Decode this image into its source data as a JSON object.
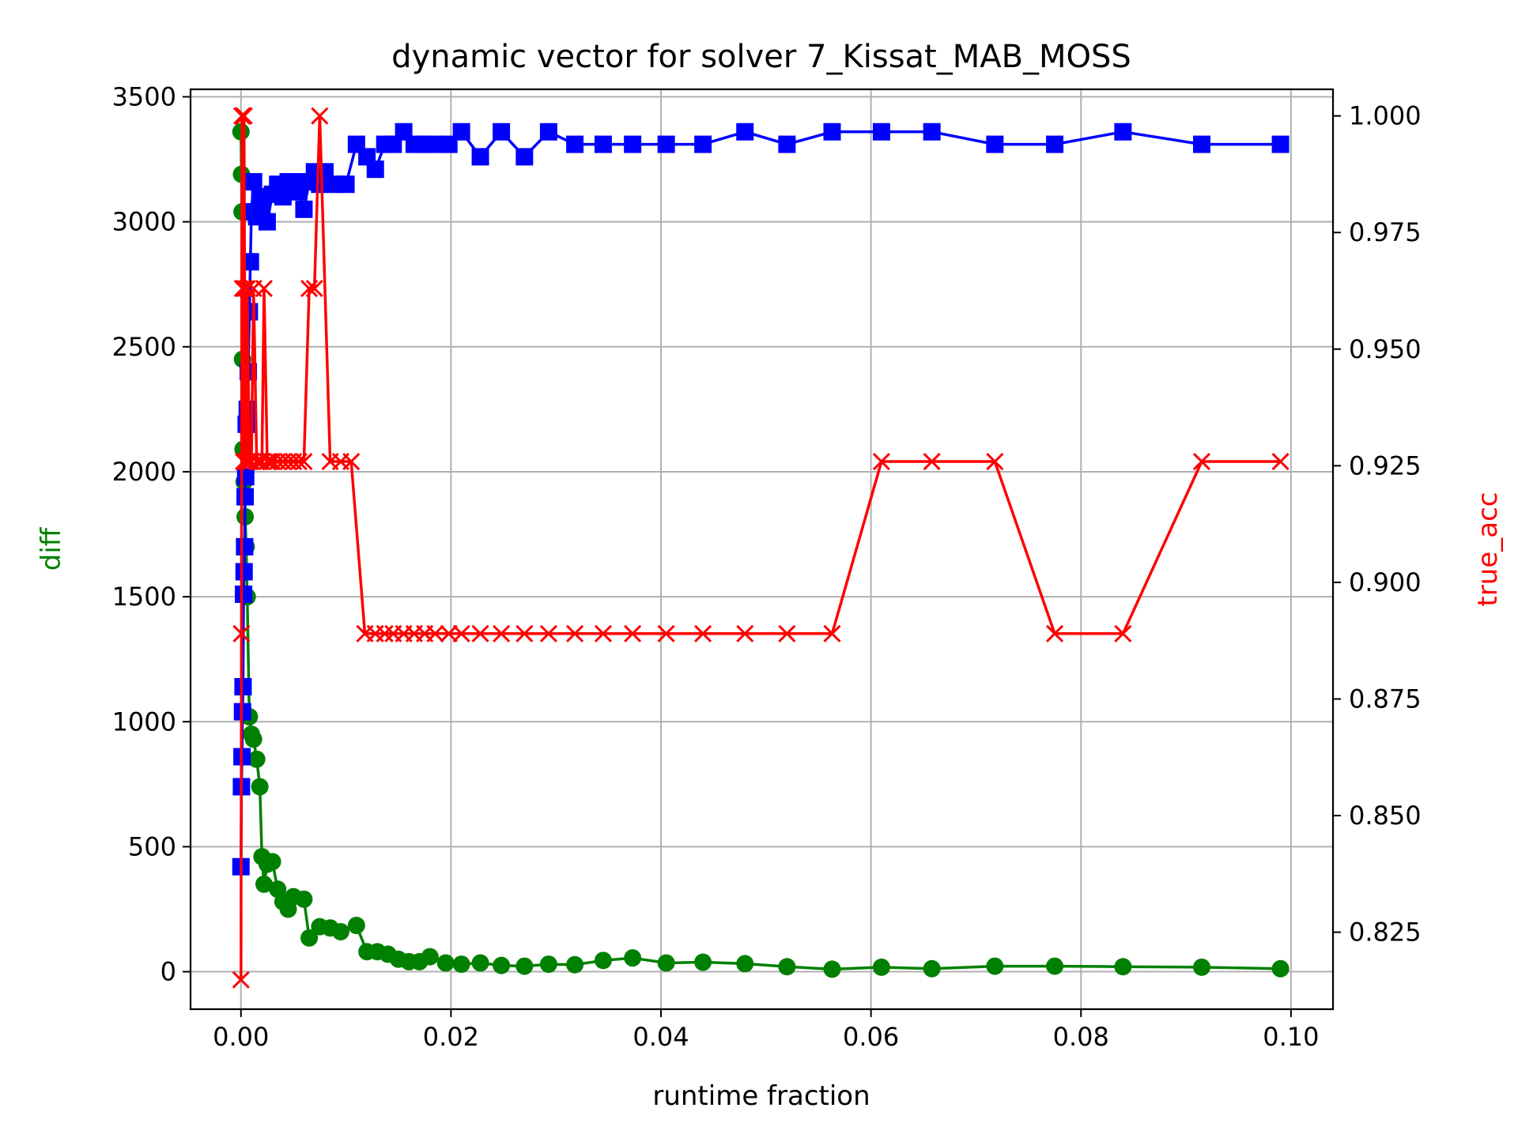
{
  "colors": {
    "diff": "#008000",
    "blue_series": "#0000ff",
    "true_acc": "#ff0000",
    "grid": "#b0b0b0"
  },
  "chart_data": {
    "type": "line",
    "title": "dynamic vector for solver 7_Kissat_MAB_MOSS",
    "xlabel": "runtime fraction",
    "ylabel": "diff",
    "ylabel_right": "true_acc",
    "xlim": [
      -0.0048,
      0.104
    ],
    "ylim": [
      -150,
      3530
    ],
    "ylim_right": [
      0.8085,
      1.0057
    ],
    "grid": true,
    "x_ticks": [
      0.0,
      0.02,
      0.04,
      0.06,
      0.08,
      0.1
    ],
    "x_tick_labels": [
      "0.00",
      "0.02",
      "0.04",
      "0.06",
      "0.08",
      "0.10"
    ],
    "y_ticks": [
      0,
      500,
      1000,
      1500,
      2000,
      2500,
      3000,
      3500
    ],
    "y_tick_labels": [
      "0",
      "500",
      "1000",
      "1500",
      "2000",
      "2500",
      "3000",
      "3500"
    ],
    "y_right_ticks": [
      0.825,
      0.85,
      0.875,
      0.9,
      0.925,
      0.95,
      0.975,
      1.0
    ],
    "y_right_tick_labels": [
      "0.825",
      "0.850",
      "0.875",
      "0.900",
      "0.925",
      "0.950",
      "0.975",
      "1.000"
    ],
    "series": [
      {
        "axis": "left",
        "color": "#008000",
        "marker": "circle",
        "x": [
          0.0,
          5e-05,
          0.0001,
          0.00015,
          0.0002,
          0.0003,
          0.0004,
          0.0005,
          0.0006,
          0.0008,
          0.001,
          0.0012,
          0.0015,
          0.0018,
          0.002,
          0.0022,
          0.0025,
          0.003,
          0.0035,
          0.004,
          0.0045,
          0.005,
          0.006,
          0.0065,
          0.0075,
          0.0085,
          0.0095,
          0.011,
          0.012,
          0.013,
          0.014,
          0.015,
          0.016,
          0.017,
          0.018,
          0.0195,
          0.021,
          0.0228,
          0.0248,
          0.027,
          0.0293,
          0.0318,
          0.0345,
          0.0373,
          0.0405,
          0.044,
          0.048,
          0.052,
          0.0563,
          0.061,
          0.0658,
          0.0718,
          0.0775,
          0.084,
          0.0915,
          0.099
        ],
        "values": [
          3360,
          3190,
          3040,
          2450,
          2090,
          1960,
          1820,
          1700,
          1500,
          1020,
          950,
          930,
          850,
          740,
          460,
          350,
          430,
          440,
          330,
          280,
          250,
          300,
          290,
          135,
          180,
          175,
          160,
          185,
          80,
          80,
          70,
          50,
          40,
          40,
          60,
          35,
          30,
          35,
          25,
          22,
          30,
          28,
          45,
          55,
          35,
          38,
          32,
          20,
          10,
          18,
          12,
          22,
          22,
          20,
          18,
          12
        ]
      },
      {
        "axis": "left",
        "color": "#0000ff",
        "marker": "square",
        "x": [
          0.0,
          5e-05,
          0.0001,
          0.00015,
          0.0002,
          0.00025,
          0.0003,
          0.00035,
          0.0004,
          0.00045,
          0.0005,
          0.0006,
          0.0007,
          0.0008,
          0.0009,
          0.001,
          0.0012,
          0.0015,
          0.0018,
          0.002,
          0.0025,
          0.003,
          0.0035,
          0.004,
          0.0045,
          0.005,
          0.0055,
          0.006,
          0.0065,
          0.007,
          0.0075,
          0.008,
          0.009,
          0.01,
          0.011,
          0.012,
          0.0128,
          0.0137,
          0.0145,
          0.0155,
          0.0165,
          0.0175,
          0.0185,
          0.0198,
          0.021,
          0.0228,
          0.0248,
          0.027,
          0.0293,
          0.0318,
          0.0345,
          0.0373,
          0.0405,
          0.044,
          0.048,
          0.052,
          0.0563,
          0.061,
          0.0658,
          0.0718,
          0.0775,
          0.084,
          0.0915,
          0.099
        ],
        "values": [
          420,
          740,
          860,
          1040,
          1140,
          1510,
          1600,
          1700,
          1900,
          1980,
          2190,
          2250,
          2400,
          2640,
          2840,
          3040,
          3160,
          3020,
          3100,
          3050,
          3000,
          3110,
          3150,
          3100,
          3160,
          3160,
          3120,
          3050,
          3160,
          3200,
          3150,
          3200,
          3150,
          3150,
          3310,
          3260,
          3210,
          3310,
          3310,
          3360,
          3310,
          3310,
          3310,
          3310,
          3360,
          3260,
          3360,
          3260,
          3360,
          3310,
          3310,
          3310,
          3310,
          3310,
          3360,
          3310,
          3360,
          3360,
          3360,
          3310,
          3310,
          3360,
          3310,
          3310
        ]
      },
      {
        "axis": "right",
        "color": "#ff0000",
        "marker": "x",
        "x": [
          0.0,
          5e-05,
          0.0001,
          0.00015,
          0.0002,
          0.00025,
          0.0003,
          0.00035,
          0.0004,
          0.0005,
          0.0006,
          0.0008,
          0.001,
          0.0012,
          0.0015,
          0.0018,
          0.002,
          0.0022,
          0.0025,
          0.0028,
          0.003,
          0.0035,
          0.004,
          0.0045,
          0.005,
          0.0055,
          0.006,
          0.0065,
          0.007,
          0.0075,
          0.0085,
          0.0095,
          0.0105,
          0.0118,
          0.0128,
          0.0137,
          0.0145,
          0.0155,
          0.0165,
          0.0175,
          0.0185,
          0.0198,
          0.021,
          0.0228,
          0.0248,
          0.027,
          0.0293,
          0.0318,
          0.0345,
          0.0373,
          0.0405,
          0.044,
          0.048,
          0.052,
          0.0563,
          0.061,
          0.0658,
          0.0718,
          0.0775,
          0.084,
          0.0915,
          0.099
        ],
        "values": [
          0.8148,
          0.889,
          1.0,
          0.963,
          1.0,
          0.9259,
          1.0,
          0.963,
          0.9259,
          0.9259,
          0.963,
          0.9259,
          0.9259,
          0.963,
          0.9259,
          0.9259,
          0.9259,
          0.963,
          0.9259,
          0.9259,
          0.9259,
          0.9259,
          0.9259,
          0.9259,
          0.9259,
          0.9259,
          0.9259,
          0.963,
          0.963,
          1.0,
          0.9259,
          0.9259,
          0.9259,
          0.889,
          0.889,
          0.889,
          0.889,
          0.889,
          0.889,
          0.889,
          0.889,
          0.889,
          0.889,
          0.889,
          0.889,
          0.889,
          0.889,
          0.889,
          0.889,
          0.889,
          0.889,
          0.889,
          0.889,
          0.889,
          0.889,
          0.9259,
          0.9259,
          0.9259,
          0.889,
          0.889,
          0.9259,
          0.9259
        ]
      }
    ]
  }
}
